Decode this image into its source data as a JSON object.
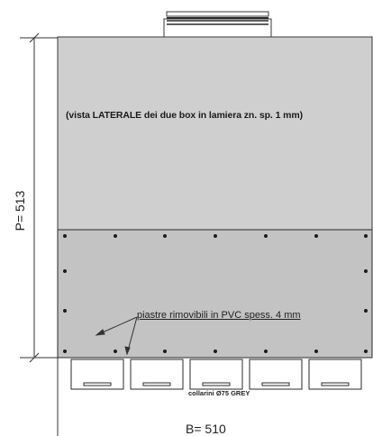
{
  "drawing": {
    "title_note": "(vista LATERALE dei due box in lamiera zn. sp. 1 mm)",
    "depth_label": "P= 513",
    "width_label": "B= 510",
    "plate_note": "piastre rimovibili in PVC spess. 4 mm",
    "collar_note": "collarini Ø75 GREY",
    "collar_count": 5,
    "colors": {
      "box_fill": "#cfcfcf",
      "panel_fill": "#c3c3c3",
      "outline": "#3a3a3a",
      "screw": "#1a1a1a",
      "collar_fill": "#ffffff"
    }
  }
}
